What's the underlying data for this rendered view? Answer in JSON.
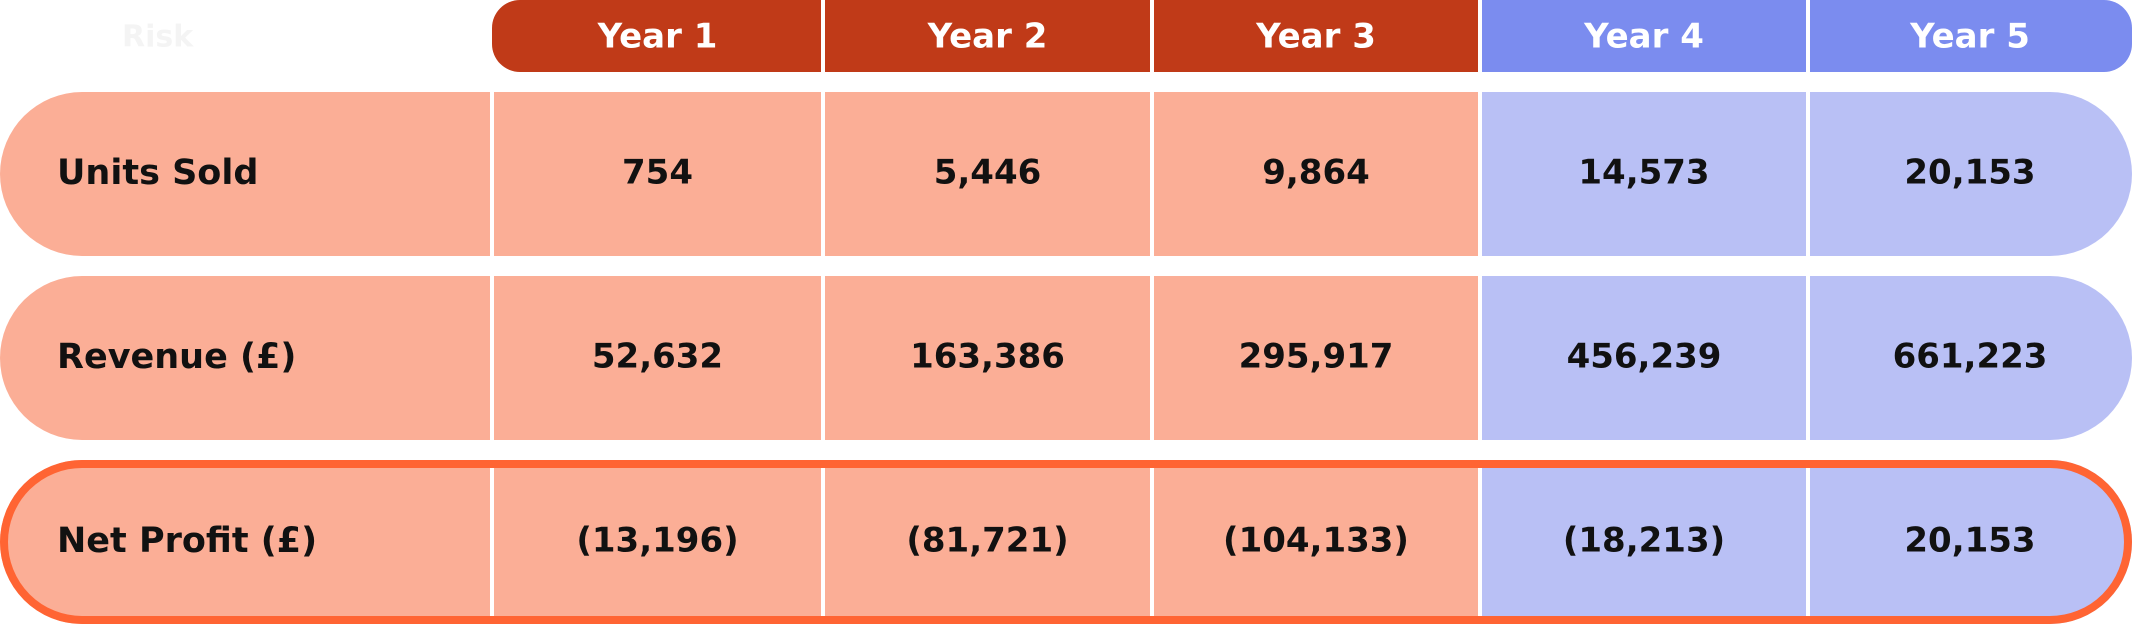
{
  "table": {
    "header": [
      "Risk",
      "Year 1",
      "Year 2",
      "Year 3",
      "Year 4",
      "Year 5"
    ],
    "rows": [
      [
        "Units Sold",
        "754",
        "5,446",
        "9,864",
        "14,573",
        "20,153"
      ],
      [
        "Revenue (£)",
        "52,632",
        "163,386",
        "295,917",
        "456,239",
        "661,223"
      ],
      [
        "Net Profit (£)",
        "(13,196)",
        "(81,721)",
        "(104,133)",
        "(18,213)",
        "20,153"
      ]
    ]
  }
}
